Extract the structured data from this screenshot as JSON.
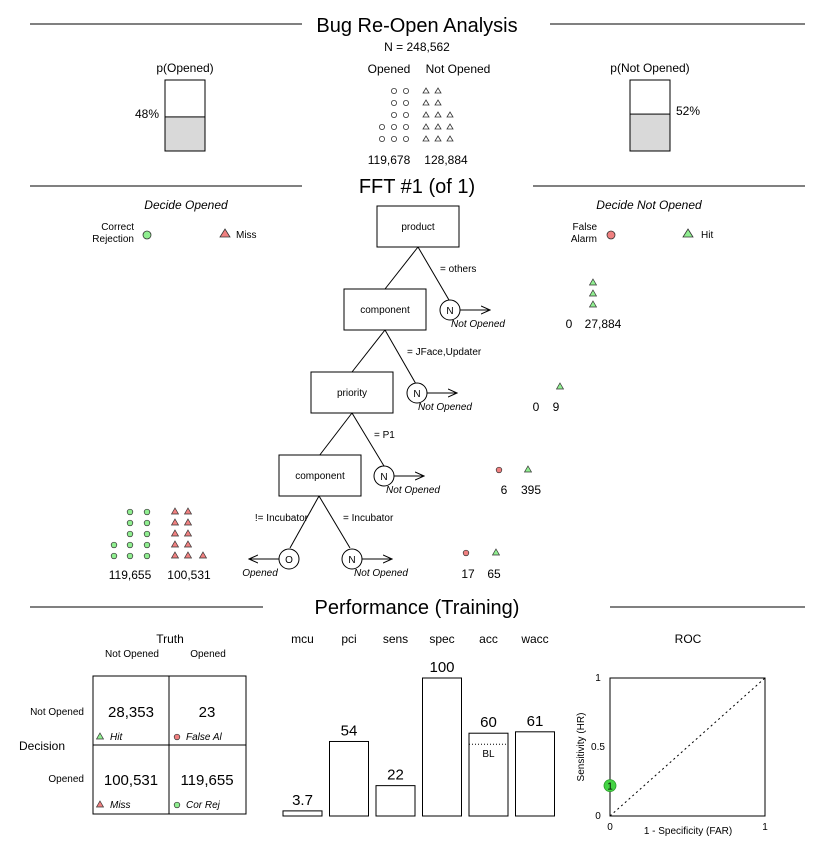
{
  "header": {
    "title": "Bug Re-Open Analysis",
    "n_label": "N = 248,562",
    "p_opened_label": "p(Opened)",
    "p_opened_value": "48%",
    "p_opened_fraction": 0.48,
    "p_not_opened_label": "p(Not Opened)",
    "p_not_opened_value": "52%",
    "p_not_opened_fraction": 0.52,
    "col_opened": "Opened",
    "col_not_opened": "Not Opened",
    "count_opened": "119,678",
    "count_not_opened": "128,884"
  },
  "tree": {
    "title": "FFT #1 (of 1)",
    "decide_opened": "Decide Opened",
    "decide_not_opened": "Decide Not Opened",
    "legend_left": {
      "correct_rejection": "Correct\nRejection",
      "miss": "Miss"
    },
    "legend_right": {
      "false_alarm": "False\nAlarm",
      "hit": "Hit"
    },
    "nodes": [
      {
        "cue": "product",
        "branch": "= others",
        "exit_letter": "N",
        "exit_label": "Not Opened",
        "fa": "0",
        "hit": "27,884"
      },
      {
        "cue": "component",
        "branch": "= JFace,Updater",
        "exit_letter": "N",
        "exit_label": "Not Opened",
        "fa": "0",
        "hit": "9"
      },
      {
        "cue": "priority",
        "branch": "= P1",
        "exit_letter": "N",
        "exit_label": "Not Opened",
        "fa": "6",
        "hit": "395"
      },
      {
        "cue": "component",
        "branch": "= Incubator",
        "exit_letter": "N",
        "exit_label": "Not Opened",
        "fa": "17",
        "hit": "65"
      }
    ],
    "final_left": {
      "branch": "!= Incubator",
      "exit_letter": "O",
      "exit_label": "Opened",
      "cr": "119,655",
      "miss": "100,531"
    }
  },
  "performance": {
    "title": "Performance (Training)",
    "truth_label": "Truth",
    "decision_label": "Decision",
    "truth_not_opened": "Not Opened",
    "truth_opened": "Opened",
    "dec_not_opened": "Not Opened",
    "dec_opened": "Opened",
    "cells": {
      "hit": {
        "value": "28,353",
        "label": "Hit"
      },
      "fa": {
        "value": "23",
        "label": "False Al"
      },
      "miss": {
        "value": "100,531",
        "label": "Miss"
      },
      "cr": {
        "value": "119,655",
        "label": "Cor Rej"
      }
    },
    "bl_label": "BL",
    "roc": {
      "title": "ROC",
      "xlabel": "1 - Specificity (FAR)",
      "ylabel": "Sensitivity (HR)",
      "point_label": "1",
      "point_far": 0.0,
      "point_hr": 0.22,
      "ticks": [
        "0",
        "0.5",
        "1"
      ],
      "xticks": [
        "0",
        "1"
      ]
    }
  },
  "chart_data": {
    "type": "bar",
    "categories": [
      "mcu",
      "pci",
      "sens",
      "spec",
      "acc",
      "wacc"
    ],
    "values": [
      3.7,
      54,
      22,
      100,
      60,
      61
    ],
    "value_labels": [
      "3.7",
      "54",
      "22",
      "100",
      "60",
      "61"
    ],
    "ylim": [
      0,
      100
    ],
    "baseline_acc": 52,
    "title": "",
    "xlabel": "",
    "ylabel": ""
  },
  "colors": {
    "hit": "#90ee90",
    "false_alarm": "#f08080",
    "correct_rejection": "#90ee90",
    "miss": "#f08080",
    "bar_fill": "#ffffff",
    "prob_fill": "#d9d9d9"
  }
}
